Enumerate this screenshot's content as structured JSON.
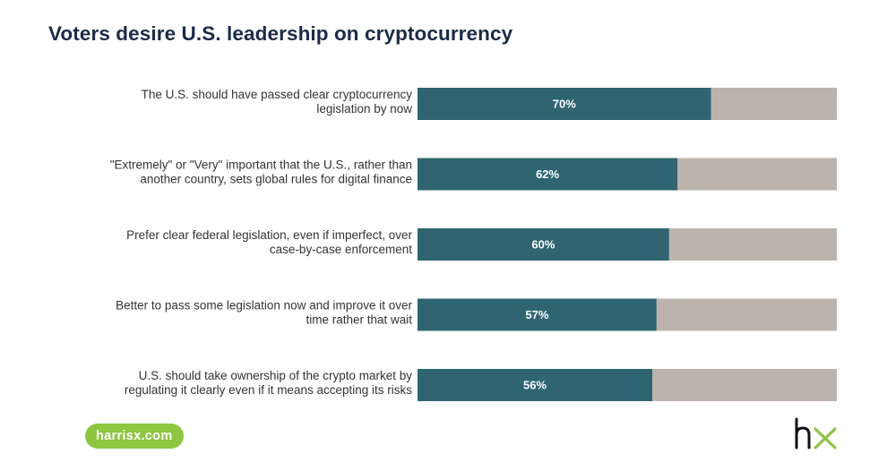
{
  "title": "Voters desire U.S. leadership on cryptocurrency",
  "footer": {
    "site": "harrisx.com"
  },
  "logo": {
    "icon": "hx-logo-icon",
    "text": "hx",
    "accent": "#8dc63f"
  },
  "colors": {
    "bar": "#2e6570",
    "remainder": "#bdb3ad",
    "title": "#1b2a4a"
  },
  "chart_data": {
    "type": "bar",
    "orientation": "horizontal",
    "stacked": true,
    "xlim": [
      0,
      100
    ],
    "categories": [
      [
        "The U.S. should have passed clear cryptocurrency",
        "legislation by now"
      ],
      [
        "\"Extremely\" or \"Very\" important that the U.S., rather than",
        "another country, sets global rules for digital finance"
      ],
      [
        "Prefer clear federal legislation, even if imperfect, over",
        "case-by-case enforcement"
      ],
      [
        "Better to pass some legislation now and improve it over",
        "time rather that wait"
      ],
      [
        "U.S. should take ownership of the crypto market by",
        "regulating it clearly even if it means accepting its risks"
      ]
    ],
    "values": [
      70,
      62,
      60,
      57,
      56
    ],
    "value_labels": [
      "70%",
      "62%",
      "60%",
      "57%",
      "56%"
    ],
    "grid": false,
    "legend": "none"
  }
}
